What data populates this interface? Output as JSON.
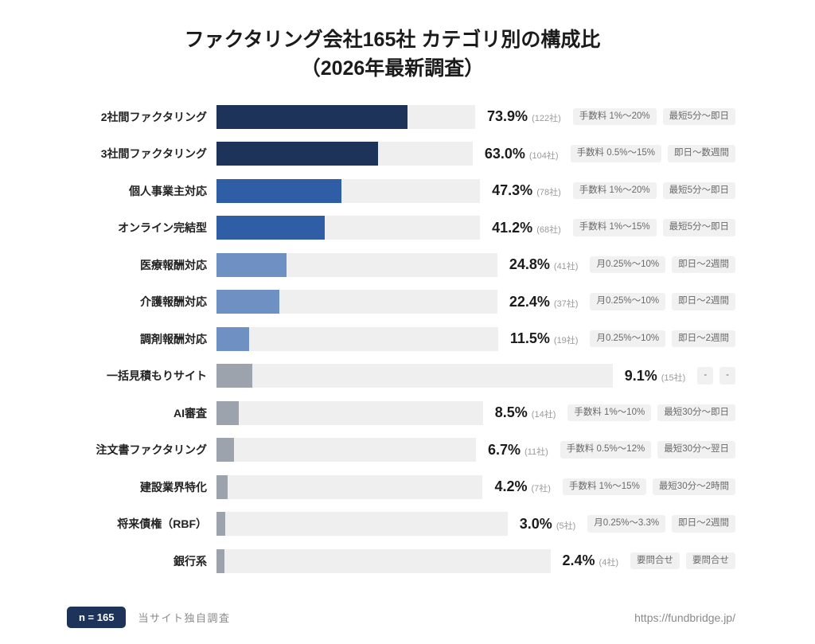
{
  "title": {
    "line1": "ファクタリング会社165社 カテゴリ別の構成比",
    "line2": "（2026年最新調査）"
  },
  "colors": {
    "bar_dark_navy": "#1e3359",
    "bar_medium_blue": "#2f5da6",
    "bar_light_blue": "#6e90c2",
    "bar_gray": "#9da3ad",
    "track": "#efefef",
    "badge_bg": "#1e3359",
    "tag_bg": "#f1f1f2"
  },
  "chart_data": {
    "type": "bar",
    "orientation": "horizontal",
    "value_unit": "%",
    "value_range": [
      0,
      100
    ],
    "title": "ファクタリング会社165社 カテゴリ別の構成比（2026年最新調査）",
    "sample_size": 165,
    "categories": [
      "2社間ファクタリング",
      "3社間ファクタリング",
      "個人事業主対応",
      "オンライン完結型",
      "医療報酬対応",
      "介護報酬対応",
      "調剤報酬対応",
      "一括見積もりサイト",
      "AI審査",
      "注文書ファクタリング",
      "建設業界特化",
      "将来債権（RBF）",
      "銀行系"
    ],
    "values": [
      73.9,
      63.0,
      47.3,
      41.2,
      24.8,
      22.4,
      11.5,
      9.1,
      8.5,
      6.7,
      4.2,
      3.0,
      2.4
    ],
    "rows": [
      {
        "label": "2社間ファクタリング",
        "value": 73.9,
        "percent": "73.9%",
        "count": "(122社)",
        "fee": "手数料 1%〜20%",
        "speed": "最短5分〜即日",
        "color": "#1e3359"
      },
      {
        "label": "3社間ファクタリング",
        "value": 63.0,
        "percent": "63.0%",
        "count": "(104社)",
        "fee": "手数料 0.5%〜15%",
        "speed": "即日〜数週間",
        "color": "#1e3359"
      },
      {
        "label": "個人事業主対応",
        "value": 47.3,
        "percent": "47.3%",
        "count": "(78社)",
        "fee": "手数料 1%〜20%",
        "speed": "最短5分〜即日",
        "color": "#2f5da6"
      },
      {
        "label": "オンライン完結型",
        "value": 41.2,
        "percent": "41.2%",
        "count": "(68社)",
        "fee": "手数料 1%〜15%",
        "speed": "最短5分〜即日",
        "color": "#2f5da6"
      },
      {
        "label": "医療報酬対応",
        "value": 24.8,
        "percent": "24.8%",
        "count": "(41社)",
        "fee": "月0.25%〜10%",
        "speed": "即日〜2週間",
        "color": "#6e90c2"
      },
      {
        "label": "介護報酬対応",
        "value": 22.4,
        "percent": "22.4%",
        "count": "(37社)",
        "fee": "月0.25%〜10%",
        "speed": "即日〜2週間",
        "color": "#6e90c2"
      },
      {
        "label": "調剤報酬対応",
        "value": 11.5,
        "percent": "11.5%",
        "count": "(19社)",
        "fee": "月0.25%〜10%",
        "speed": "即日〜2週間",
        "color": "#6e90c2"
      },
      {
        "label": "一括見積もりサイト",
        "value": 9.1,
        "percent": "9.1%",
        "count": "(15社)",
        "fee": "-",
        "speed": "-",
        "color": "#9da3ad"
      },
      {
        "label": "AI審査",
        "value": 8.5,
        "percent": "8.5%",
        "count": "(14社)",
        "fee": "手数料 1%〜10%",
        "speed": "最短30分〜即日",
        "color": "#9da3ad"
      },
      {
        "label": "注文書ファクタリング",
        "value": 6.7,
        "percent": "6.7%",
        "count": "(11社)",
        "fee": "手数料 0.5%〜12%",
        "speed": "最短30分〜翌日",
        "color": "#9da3ad"
      },
      {
        "label": "建設業界特化",
        "value": 4.2,
        "percent": "4.2%",
        "count": "(7社)",
        "fee": "手数料 1%〜15%",
        "speed": "最短30分〜2時間",
        "color": "#9da3ad"
      },
      {
        "label": "将来債権（RBF）",
        "value": 3.0,
        "percent": "3.0%",
        "count": "(5社)",
        "fee": "月0.25%〜3.3%",
        "speed": "即日〜2週間",
        "color": "#9da3ad"
      },
      {
        "label": "銀行系",
        "value": 2.4,
        "percent": "2.4%",
        "count": "(4社)",
        "fee": "要問合せ",
        "speed": "要問合せ",
        "color": "#9da3ad"
      }
    ]
  },
  "footer": {
    "n_badge": "n = 165",
    "source": "当サイト独自調査",
    "url": "https://fundbridge.jp/"
  }
}
